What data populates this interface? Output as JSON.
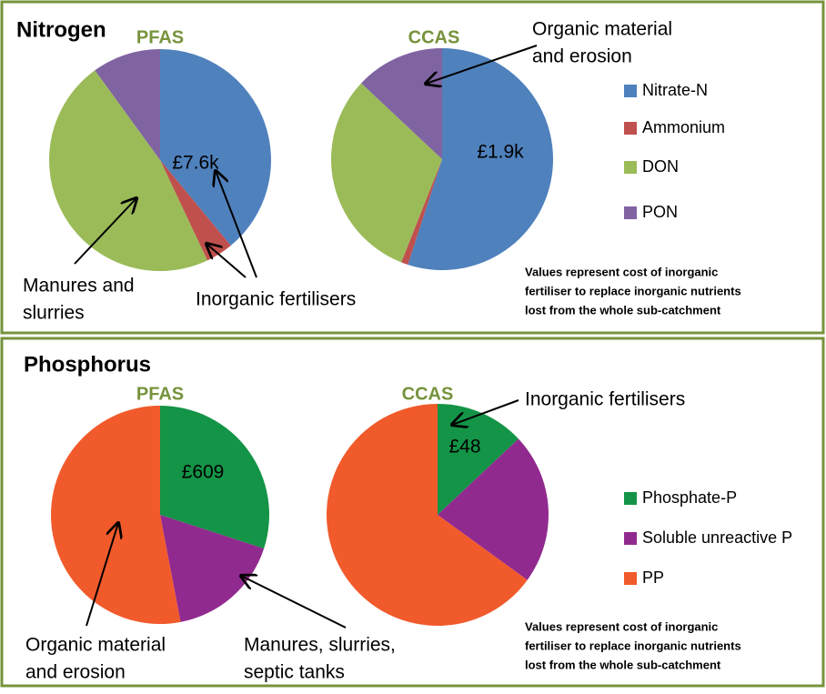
{
  "panels": [
    {
      "title": "Nitrogen",
      "note": [
        "Values represent cost of inorganic",
        "fertiliser to replace inorganic nutrients",
        "lost from the whole sub-catchment"
      ]
    },
    {
      "title": "Phosphorus",
      "note": [
        "Values represent cost of inorganic",
        "fertiliser to replace inorganic nutrients",
        "lost from the whole sub-catchment"
      ]
    }
  ],
  "chart_data": [
    {
      "type": "pie",
      "title": "PFAS",
      "categories": [
        "Nitrate-N",
        "Ammonium",
        "DON",
        "PON"
      ],
      "values": [
        39,
        4,
        47,
        10
      ],
      "colors": [
        "#4f81bd",
        "#c0504d",
        "#9bbb59",
        "#8064a2"
      ],
      "slice_labels": [
        "£7.6k",
        null,
        null,
        null
      ],
      "annotations": [
        {
          "lines": [
            "Manures and",
            "slurries"
          ]
        },
        {
          "lines": [
            "Inorganic fertilisers"
          ]
        }
      ]
    },
    {
      "type": "pie",
      "title": "CCAS",
      "categories": [
        "Nitrate-N",
        "Ammonium",
        "DON",
        "PON"
      ],
      "values": [
        55,
        1,
        31,
        13
      ],
      "colors": [
        "#4f81bd",
        "#c0504d",
        "#9bbb59",
        "#8064a2"
      ],
      "slice_labels": [
        "£1.9k",
        null,
        null,
        null
      ],
      "annotations": [
        {
          "lines": [
            "Organic material",
            "and erosion"
          ]
        }
      ]
    },
    {
      "type": "pie",
      "title": "PFAS",
      "categories": [
        "Phosphate-P",
        "Soluble unreactive P",
        "PP"
      ],
      "values": [
        30,
        17,
        53
      ],
      "colors": [
        "#149447",
        "#912a8f",
        "#f15a2b"
      ],
      "slice_labels": [
        "£609",
        null,
        null
      ],
      "annotations": [
        {
          "lines": [
            "Organic material",
            "and erosion"
          ]
        },
        {
          "lines": [
            "Manures, slurries,",
            "septic tanks"
          ]
        }
      ]
    },
    {
      "type": "pie",
      "title": "CCAS",
      "categories": [
        "Phosphate-P",
        "Soluble unreactive P",
        "PP"
      ],
      "values": [
        13,
        22,
        65
      ],
      "colors": [
        "#149447",
        "#912a8f",
        "#f15a2b"
      ],
      "slice_labels": [
        "£48",
        null,
        null
      ],
      "annotations": [
        {
          "lines": [
            "Inorganic fertilisers"
          ]
        }
      ]
    }
  ]
}
